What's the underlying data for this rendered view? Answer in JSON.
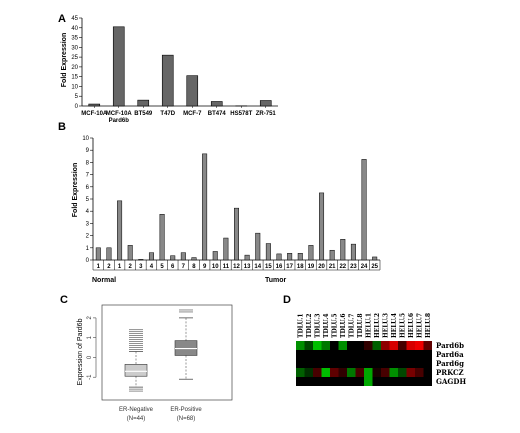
{
  "panel_labels": [
    "A",
    "B",
    "C",
    "D"
  ],
  "chart_data": [
    {
      "panel": "A",
      "type": "bar",
      "ylabel": "Fold Expression",
      "ylim": [
        0,
        45
      ],
      "yticks": [
        0,
        5,
        10,
        15,
        20,
        25,
        30,
        35,
        40,
        45
      ],
      "categories": [
        "MCF-10A",
        "MCF-10A",
        "BT549",
        "T47D",
        "MCF-7",
        "BT474",
        "HS578T",
        "ZR-751"
      ],
      "category_sublabels": [
        "",
        "Pard6b",
        "",
        "",
        "",
        "",
        "",
        ""
      ],
      "values": [
        1.0,
        40.5,
        3.0,
        26.0,
        15.5,
        2.3,
        0.1,
        2.8
      ],
      "bar_color": "#666666"
    },
    {
      "panel": "B",
      "type": "bar",
      "ylabel": "Fold Expression",
      "ylim": [
        0,
        10
      ],
      "yticks": [
        0,
        1,
        2,
        3,
        4,
        5,
        6,
        7,
        8,
        9,
        10
      ],
      "categories": [
        "1",
        "2",
        "1",
        "2",
        "3",
        "4",
        "5",
        "6",
        "7",
        "8",
        "9",
        "10",
        "11",
        "12",
        "13",
        "14",
        "15",
        "16",
        "17",
        "18",
        "19",
        "20",
        "21",
        "22",
        "23",
        "24",
        "25"
      ],
      "values": [
        1.0,
        1.0,
        4.85,
        1.2,
        0.05,
        0.6,
        3.75,
        0.35,
        0.6,
        0.2,
        8.7,
        0.7,
        1.8,
        4.25,
        0.4,
        2.2,
        1.35,
        0.5,
        0.55,
        0.55,
        1.2,
        5.5,
        0.8,
        1.7,
        1.3,
        8.25,
        0.25
      ],
      "groups": [
        {
          "label": "Normal",
          "start": 0,
          "end": 1
        },
        {
          "label": "Tumor",
          "start": 2,
          "end": 26
        }
      ],
      "bar_color": "#888888"
    },
    {
      "panel": "C",
      "type": "box",
      "ylabel": "Expression of Pard6b",
      "ylim": [
        -2,
        2.5
      ],
      "yticks": [
        -1,
        0,
        1,
        2
      ],
      "categories": [
        "ER-Negative",
        "ER-Positive"
      ],
      "category_sublabels": [
        "(N=44)",
        "(N=68)"
      ],
      "boxes": [
        {
          "min": -1.5,
          "q1": -0.95,
          "median": -0.7,
          "q3": -0.35,
          "max": 0.3,
          "fill": "#cccccc",
          "outliers": [
            0.4,
            0.5,
            0.6,
            0.7,
            0.8,
            0.9,
            1.0,
            1.1,
            1.2,
            1.3,
            1.4,
            -1.6,
            -1.7
          ]
        },
        {
          "min": -1.1,
          "q1": 0.1,
          "median": 0.45,
          "q3": 0.85,
          "max": 2.0,
          "fill": "#888888",
          "outliers": [
            2.4,
            2.3
          ]
        }
      ]
    },
    {
      "panel": "D",
      "type": "heatmap",
      "columns": [
        "TDLU.1",
        "TDLU.2",
        "TDLU.3",
        "TDLU.4",
        "TDLU.5",
        "TDLU.6",
        "TDLU.7",
        "TDLU.8",
        "HELU.1",
        "HELU.2",
        "HELU.3",
        "HELU.4",
        "HELU.5",
        "HELU.6",
        "HELU.7",
        "HELU.8"
      ],
      "rows": [
        "Pard6b",
        "Pard6a",
        "Pard6g",
        "PRKCZ",
        "GAGDH"
      ],
      "values": [
        [
          -0.6,
          -0.3,
          -0.8,
          -0.5,
          0.0,
          -0.6,
          0.0,
          0.0,
          0.2,
          -0.4,
          0.6,
          0.9,
          0.3,
          0.9,
          1.0,
          0.4
        ],
        [
          0.0,
          0.0,
          0.0,
          0.0,
          0.0,
          0.0,
          0.0,
          0.0,
          0.0,
          0.0,
          0.0,
          0.0,
          0.0,
          0.0,
          0.0,
          0.0
        ],
        [
          0.0,
          0.0,
          0.0,
          0.0,
          0.0,
          0.0,
          0.0,
          0.0,
          0.0,
          0.0,
          0.0,
          0.0,
          0.0,
          0.0,
          0.0,
          0.0
        ],
        [
          -0.4,
          -0.2,
          0.3,
          -0.8,
          0.4,
          0.2,
          -0.5,
          0.3,
          -0.7,
          0.1,
          0.3,
          -0.6,
          -0.3,
          0.5,
          0.3,
          0.0
        ],
        [
          0.0,
          0.0,
          0.0,
          0.0,
          0.0,
          0.0,
          0.0,
          0.0,
          -0.7,
          0.0,
          0.0,
          0.0,
          0.0,
          0.0,
          0.0,
          0.0
        ]
      ],
      "color_low": "#00ee00",
      "color_mid": "#000000",
      "color_high": "#ee0000"
    }
  ]
}
